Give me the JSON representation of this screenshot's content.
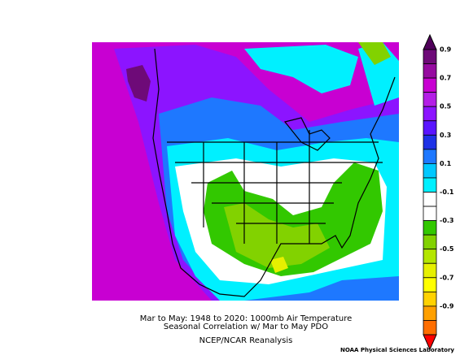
{
  "caption": {
    "line1": "Mar to May: 1948 to 2020: 1000mb Air Temperature",
    "line2": "Seasonal Correlation w/ Mar to May PDO",
    "line3": "NCEP/NCAR Reanalysis"
  },
  "credit": "NOAA Physical Sciences Laboratory",
  "colorbar": {
    "labels": [
      "0.9",
      "0.7",
      "0.5",
      "0.3",
      "0.1",
      "-0.1",
      "-0.3",
      "-0.5",
      "-0.7",
      "-0.9"
    ],
    "colors": [
      "#50005a",
      "#6e0a78",
      "#960aa0",
      "#c800d2",
      "#b41ee6",
      "#8c14ff",
      "#5a14ff",
      "#1e32e6",
      "#1e78ff",
      "#00c8ff",
      "#00f0ff",
      "#ffffff",
      "#ffffff",
      "#32c800",
      "#82d200",
      "#b4e600",
      "#e6f000",
      "#ffff00",
      "#ffd200",
      "#ffa000",
      "#ff6e00",
      "#ff0000"
    ]
  }
}
